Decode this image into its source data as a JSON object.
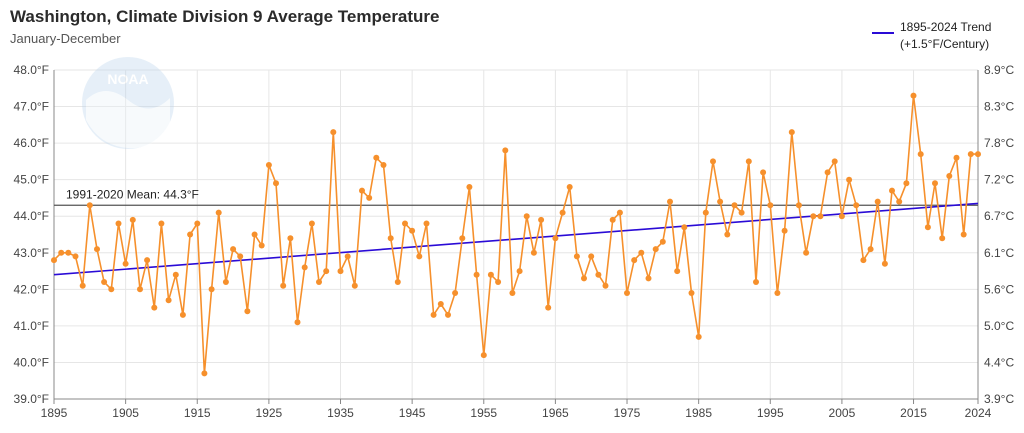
{
  "header": {
    "title": "Washington, Climate Division 9 Average Temperature",
    "subtitle": "January-December"
  },
  "legend": {
    "label_line1": "1895-2024 Trend",
    "label_line2": "(+1.5°F/Century)"
  },
  "logo": {
    "text": "NOAA"
  },
  "colors": {
    "series": "#f6902c",
    "trend": "#2a0bd6",
    "mean": "#555555",
    "grid": "#e6e6e6"
  },
  "chart_data": {
    "type": "line",
    "title": "Washington, Climate Division 9 Average Temperature",
    "subtitle": "January-December",
    "xlabel": "",
    "ylabel": "",
    "x_range": [
      1895,
      2024
    ],
    "x_ticks": [
      1895,
      1905,
      1915,
      1925,
      1935,
      1945,
      1955,
      1965,
      1975,
      1985,
      1995,
      2005,
      2015,
      2024
    ],
    "ylim": [
      39.0,
      48.0
    ],
    "y_ticks_left": [
      "39.0°F",
      "40.0°F",
      "41.0°F",
      "42.0°F",
      "43.0°F",
      "44.0°F",
      "45.0°F",
      "46.0°F",
      "47.0°F",
      "48.0°F"
    ],
    "y_ticks_right": [
      "3.9°C",
      "4.4°C",
      "5.0°C",
      "5.6°C",
      "6.1°C",
      "6.7°C",
      "7.2°C",
      "7.8°C",
      "8.3°C",
      "8.9°C"
    ],
    "grid": true,
    "legend_position": "top-right",
    "mean": {
      "value": 44.3,
      "label": "1991-2020 Mean: 44.3°F"
    },
    "trend": {
      "name": "1895-2024 Trend (+1.5°F/Century)",
      "start": [
        1895,
        42.4
      ],
      "end": [
        2024,
        44.35
      ]
    },
    "series": [
      {
        "name": "Average Temperature",
        "start_year": 1895,
        "values": [
          42.8,
          43.0,
          43.0,
          42.9,
          42.1,
          44.3,
          43.1,
          42.2,
          42.0,
          43.8,
          42.7,
          43.9,
          42.0,
          42.8,
          41.5,
          43.8,
          41.7,
          42.4,
          41.3,
          43.5,
          43.8,
          39.7,
          42.0,
          44.1,
          42.2,
          43.1,
          42.9,
          41.4,
          43.5,
          43.2,
          45.4,
          44.9,
          42.1,
          43.4,
          41.1,
          42.6,
          43.8,
          42.2,
          42.5,
          46.3,
          42.5,
          42.9,
          42.1,
          44.7,
          44.5,
          45.6,
          45.4,
          43.4,
          42.2,
          43.8,
          43.6,
          42.9,
          43.8,
          41.3,
          41.6,
          41.3,
          41.9,
          43.4,
          44.8,
          42.4,
          40.2,
          42.4,
          42.2,
          45.8,
          41.9,
          42.5,
          44.0,
          43.0,
          43.9,
          41.5,
          43.4,
          44.1,
          44.8,
          42.9,
          42.3,
          42.9,
          42.4,
          42.1,
          43.9,
          44.1,
          41.9,
          42.8,
          43.0,
          42.3,
          43.1,
          43.3,
          44.4,
          42.5,
          43.7,
          41.9,
          40.7,
          44.1,
          45.5,
          44.4,
          43.5,
          44.3,
          44.1,
          45.5,
          42.2,
          45.2,
          44.3,
          41.9,
          43.6,
          46.3,
          44.3,
          43.0,
          44.0,
          44.0,
          45.2,
          45.5,
          44.0,
          45.0,
          44.3,
          42.8,
          43.1,
          44.4,
          42.7,
          44.7,
          44.4,
          44.9,
          47.3,
          45.7,
          43.7,
          44.9,
          43.4,
          45.1,
          45.6,
          43.5,
          45.7,
          45.7
        ]
      }
    ]
  }
}
